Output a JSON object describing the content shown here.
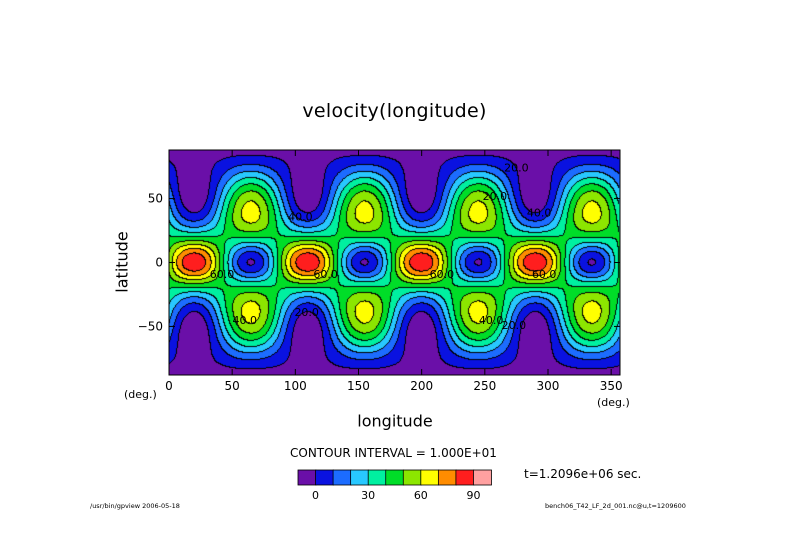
{
  "chart_data": {
    "type": "contour",
    "title": "velocity(longitude)",
    "xlabel": "longitude",
    "ylabel": "latitude",
    "x_unit_labels": [
      "(deg.)",
      "(deg.)"
    ],
    "xlim": [
      0,
      357
    ],
    "ylim": [
      -88,
      88
    ],
    "x_ticks": [
      0,
      50,
      100,
      150,
      200,
      250,
      300,
      350
    ],
    "y_ticks": [
      50,
      0,
      -50
    ],
    "contour_interval_text": "CONTOUR INTERVAL = 1.000E+01",
    "contour_levels": [
      0,
      10,
      20,
      30,
      40,
      50,
      60,
      70,
      80,
      90
    ],
    "colorbar": {
      "colors": [
        "#6a0fa8",
        "#0a12e0",
        "#1c6cff",
        "#28c8ff",
        "#00f0a0",
        "#00dd28",
        "#8ce600",
        "#ffff00",
        "#ff8c00",
        "#ff1e1e",
        "#ffa0a0"
      ],
      "tick_labels": [
        "0",
        "30",
        "60",
        "90"
      ],
      "tick_values": [
        0,
        30,
        60,
        90
      ]
    },
    "contour_labels": [
      {
        "text": "20.0",
        "x": 275,
        "y": 71
      },
      {
        "text": "20.0",
        "x": 258,
        "y": 49
      },
      {
        "text": "40.0",
        "x": 104,
        "y": 33
      },
      {
        "text": "40.0",
        "x": 293,
        "y": 36
      },
      {
        "text": "60.0",
        "x": 42,
        "y": -12
      },
      {
        "text": "60.0",
        "x": 124,
        "y": -12
      },
      {
        "text": "60.0",
        "x": 216,
        "y": -12
      },
      {
        "text": "60.0",
        "x": 297,
        "y": -12
      },
      {
        "text": "40.0",
        "x": 60,
        "y": -48
      },
      {
        "text": "20.0",
        "x": 109,
        "y": -42
      },
      {
        "text": "40.0",
        "x": 255,
        "y": -48
      },
      {
        "text": "20.0",
        "x": 273,
        "y": -52
      }
    ],
    "field": {
      "description_of_features": "four wave periods in longitude",
      "wave_periods": 4
    },
    "time_label": "t=1.2096e+06 sec.",
    "footer_left": "/usr/bin/gpview  2006-05-18",
    "footer_right": "bench06_T42_LF_2d_001.nc@u,t=1209600"
  }
}
